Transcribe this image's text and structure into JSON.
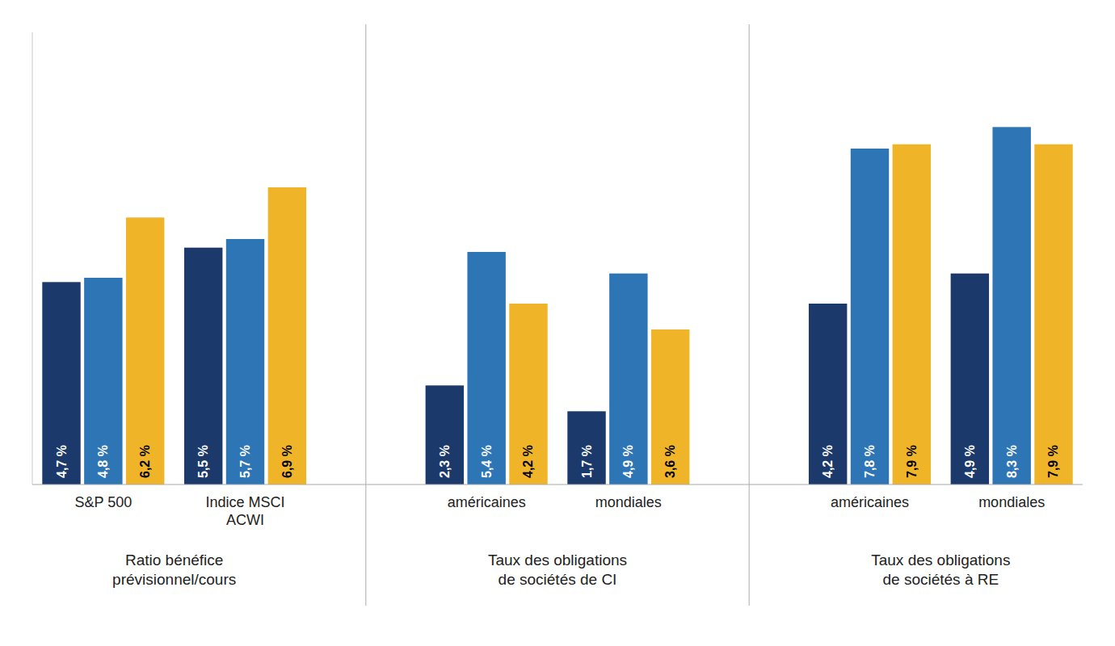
{
  "chart_data": {
    "type": "bar",
    "categories": [
      "S&P 500",
      "Indice MSCI\nACWI",
      "américaines",
      "mondiales",
      "américaines",
      "mondiales"
    ],
    "series": [
      {
        "color": "#1b3a6b",
        "values": [
          4.7,
          5.5,
          2.3,
          1.7,
          4.2,
          4.9
        ],
        "value_labels": [
          "4,7 %",
          "5,5 %",
          "2,3 %",
          "1,7 %",
          "4,2 %",
          "4,9 %"
        ]
      },
      {
        "color": "#2e75b6",
        "values": [
          4.8,
          5.7,
          5.4,
          4.9,
          7.8,
          8.3
        ],
        "value_labels": [
          "4,8 %",
          "5,7 %",
          "5,4 %",
          "4,9 %",
          "7,8 %",
          "8,3 %"
        ]
      },
      {
        "color": "#f0b429",
        "values": [
          6.2,
          6.9,
          4.2,
          3.6,
          7.9,
          7.9
        ],
        "value_labels": [
          "6,2 %",
          "6,9 %",
          "4,2 %",
          "3,6 %",
          "7,9 %",
          "7,9 %"
        ]
      }
    ],
    "annotations": [
      "Ratio bénéfice\nprévisionnel/cours",
      "Taux des obligations\nde sociétés de CI",
      "Taux des obligations\nde sociétés à RE"
    ],
    "ylim": [
      0,
      10.5
    ],
    "data_labels": true,
    "tick_labels": "x"
  }
}
